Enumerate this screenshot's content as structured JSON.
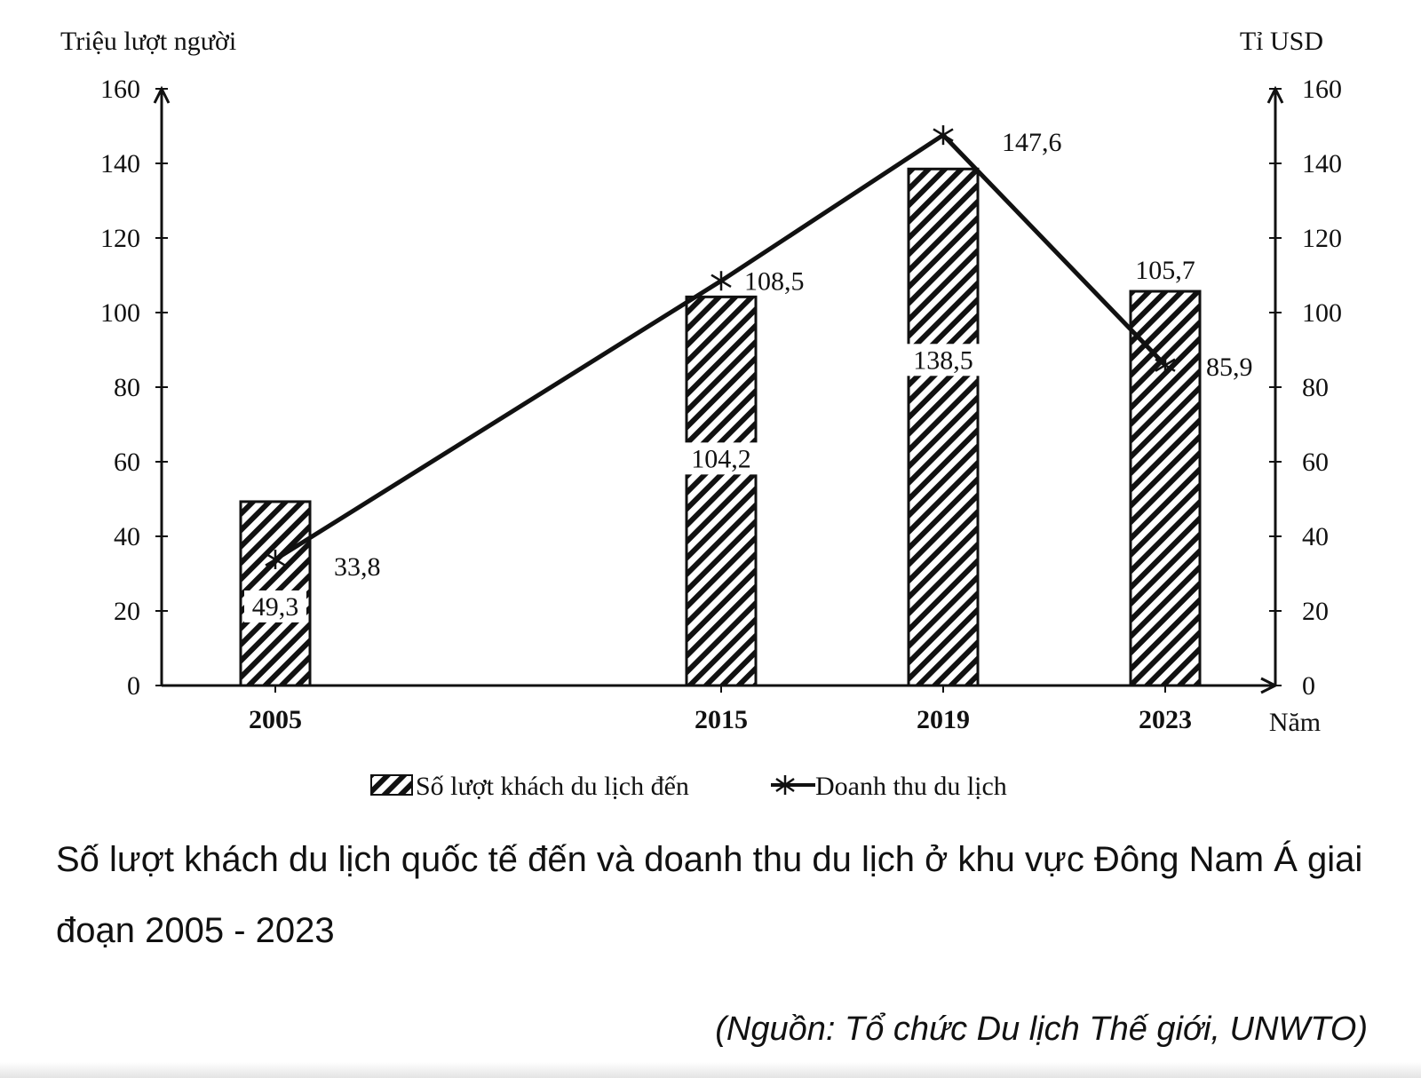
{
  "chart_data": {
    "type": "bar+line",
    "categories": [
      "2005",
      "2015",
      "2019",
      "2023"
    ],
    "x_label": "Năm",
    "y_left_label": "Triệu lượt người",
    "y_right_label": "Tỉ USD",
    "y_left_range": [
      0,
      160
    ],
    "y_right_range": [
      0,
      160
    ],
    "y_ticks": [
      0,
      20,
      40,
      60,
      80,
      100,
      120,
      140,
      160
    ],
    "series": [
      {
        "name": "Số lượt khách du lịch đến",
        "kind": "bar",
        "axis": "left",
        "pattern": "diagonal-hatch",
        "values": [
          49.3,
          104.2,
          138.5,
          105.7
        ],
        "labels": [
          "49,3",
          "104,2",
          "138,5",
          "105,7"
        ]
      },
      {
        "name": "Doanh thu du lịch",
        "kind": "line",
        "axis": "right",
        "marker": "asterisk",
        "values": [
          33.8,
          108.5,
          147.6,
          85.9
        ],
        "labels": [
          "33,8",
          "108,5",
          "147,6",
          "85,9"
        ]
      }
    ],
    "legend_position": "bottom-center",
    "grid": false
  },
  "caption": "Số lượt khách du lịch quốc tế đến và doanh thu du lịch ở khu vực Đông Nam Á giai đoạn 2005 - 2023",
  "source": "(Nguồn: Tổ chức Du lịch Thế giới, UNWTO)"
}
